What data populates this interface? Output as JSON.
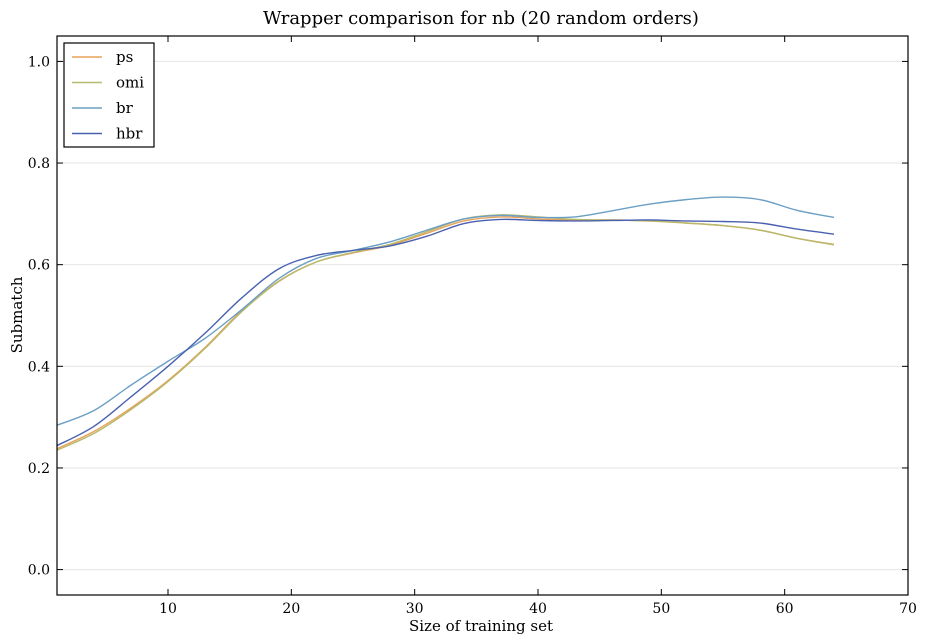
{
  "chart_data": {
    "type": "line",
    "title": "Wrapper comparison for nb (20 random orders)",
    "xlabel": "Size of training set",
    "ylabel": "Submatch",
    "xlim": [
      1,
      70
    ],
    "ylim": [
      -0.05,
      1.05
    ],
    "xticks": [
      10,
      20,
      30,
      40,
      50,
      60,
      70
    ],
    "yticks": [
      0.0,
      0.2,
      0.4,
      0.6,
      0.8,
      1.0
    ],
    "xtick_labels": [
      "10",
      "20",
      "30",
      "40",
      "50",
      "60",
      "70"
    ],
    "ytick_labels": [
      "0.0",
      "0.2",
      "0.4",
      "0.6",
      "0.8",
      "1.0"
    ],
    "grid": "horizontal",
    "legend_position": "top-left",
    "series": [
      {
        "name": "ps",
        "color": "#e8a25a",
        "x": [
          1,
          4,
          7,
          10,
          13,
          16,
          19,
          22,
          25,
          28,
          31,
          34,
          37,
          40,
          43,
          46,
          49,
          52,
          55,
          58,
          61,
          64
        ],
        "y": [
          0.238,
          0.272,
          0.318,
          0.372,
          0.437,
          0.51,
          0.568,
          0.605,
          0.623,
          0.638,
          0.662,
          0.686,
          0.694,
          0.69,
          0.688,
          0.688,
          0.686,
          0.682,
          0.677,
          0.668,
          0.652,
          0.64
        ]
      },
      {
        "name": "omi",
        "color": "#b7b96b",
        "x": [
          1,
          4,
          7,
          10,
          13,
          16,
          19,
          22,
          25,
          28,
          31,
          34,
          37,
          40,
          43,
          46,
          49,
          52,
          55,
          58,
          61,
          64
        ],
        "y": [
          0.235,
          0.268,
          0.315,
          0.37,
          0.435,
          0.508,
          0.567,
          0.605,
          0.624,
          0.64,
          0.665,
          0.69,
          0.698,
          0.694,
          0.689,
          0.688,
          0.686,
          0.682,
          0.677,
          0.668,
          0.652,
          0.639
        ]
      },
      {
        "name": "br",
        "color": "#6b9fc4",
        "x": [
          1,
          4,
          7,
          10,
          13,
          16,
          19,
          22,
          25,
          28,
          31,
          34,
          37,
          40,
          43,
          46,
          49,
          52,
          55,
          58,
          61,
          64
        ],
        "y": [
          0.284,
          0.313,
          0.363,
          0.41,
          0.455,
          0.512,
          0.573,
          0.612,
          0.628,
          0.645,
          0.668,
          0.69,
          0.697,
          0.693,
          0.694,
          0.706,
          0.719,
          0.728,
          0.733,
          0.728,
          0.707,
          0.693
        ]
      },
      {
        "name": "hbr",
        "color": "#4a61b0",
        "x": [
          1,
          4,
          7,
          10,
          13,
          16,
          19,
          22,
          25,
          28,
          31,
          34,
          37,
          40,
          43,
          46,
          49,
          52,
          55,
          58,
          61,
          64
        ],
        "y": [
          0.244,
          0.282,
          0.34,
          0.4,
          0.465,
          0.535,
          0.592,
          0.618,
          0.628,
          0.637,
          0.656,
          0.681,
          0.689,
          0.687,
          0.686,
          0.687,
          0.688,
          0.686,
          0.685,
          0.682,
          0.67,
          0.66
        ]
      }
    ]
  }
}
